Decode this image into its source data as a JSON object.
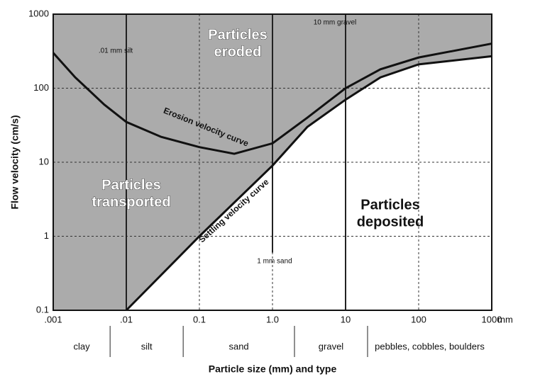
{
  "chart_data": {
    "type": "line",
    "xlabel": "Particle size (mm) and type",
    "ylabel": "Flow velocity (cm/s)",
    "x_unit": "mm",
    "xscale": "log",
    "yscale": "log",
    "xlim": [
      0.001,
      1000
    ],
    "ylim": [
      0.1,
      1000
    ],
    "xticks": [
      {
        "value": 0.001,
        "label": ".001"
      },
      {
        "value": 0.01,
        "label": ".01"
      },
      {
        "value": 0.1,
        "label": "0.1"
      },
      {
        "value": 1,
        "label": "1.0"
      },
      10,
      100,
      1000
    ],
    "yticks": [
      0.1,
      1,
      10,
      100,
      1000
    ],
    "grid": true,
    "series": [
      {
        "name": "Erosion velocity curve",
        "color": "#111111",
        "x": [
          0.001,
          0.002,
          0.005,
          0.01,
          0.03,
          0.1,
          0.3,
          1,
          3,
          10,
          30,
          100,
          1000
        ],
        "values": [
          300,
          140,
          60,
          35,
          22,
          16,
          13,
          18,
          40,
          100,
          180,
          260,
          400
        ]
      },
      {
        "name": "Settling velocity curve",
        "color": "#111111",
        "x": [
          0.01,
          0.1,
          1,
          3,
          10,
          30,
          100,
          1000
        ],
        "values": [
          0.1,
          1,
          9,
          30,
          70,
          140,
          210,
          270
        ]
      }
    ],
    "regions": [
      [
        "Particles",
        "eroded"
      ],
      [
        "Particles",
        "transported"
      ],
      [
        "Particles",
        "deposited"
      ]
    ],
    "annotations": [
      ".01 mm silt",
      "10 mm gravel",
      "1 mm sand"
    ],
    "particle_types": [
      "clay",
      "silt",
      "sand",
      "gravel",
      "pebbles, cobbles, boulders"
    ],
    "type_boundaries": [
      0.006,
      0.06,
      2,
      20
    ]
  }
}
